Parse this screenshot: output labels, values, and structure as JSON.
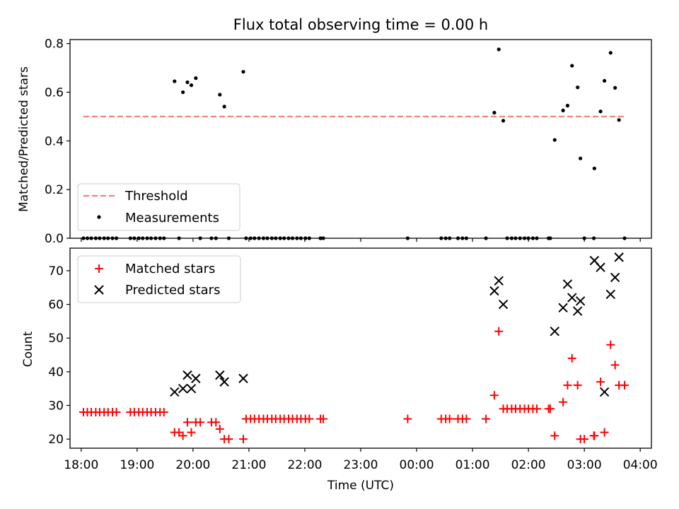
{
  "chart_data": [
    {
      "type": "scatter",
      "title": "Flux total observing time = 0.00 h",
      "xlabel": "",
      "ylabel": "Matched/Predicted stars",
      "xlim": [
        17.8,
        28.2
      ],
      "ylim": [
        0,
        0.8163
      ],
      "yticks": [
        0.0,
        0.2,
        0.4,
        0.6,
        0.8
      ],
      "ytick_labels": [
        "0.0",
        "0.2",
        "0.4",
        "0.6",
        "0.8"
      ],
      "legend_position": "lower-left",
      "threshold": {
        "name": "Threshold",
        "y": 0.5,
        "x": [
          18.04,
          27.72
        ],
        "color": "#f77f7f",
        "style": "dashed"
      },
      "series": [
        {
          "name": "Measurements",
          "color": "#000000",
          "marker": "dot",
          "points": [
            [
              18.04,
              0
            ],
            [
              18.11,
              0
            ],
            [
              18.18,
              0
            ],
            [
              18.26,
              0
            ],
            [
              18.33,
              0
            ],
            [
              18.41,
              0
            ],
            [
              18.48,
              0
            ],
            [
              18.56,
              0
            ],
            [
              18.63,
              0
            ],
            [
              18.88,
              0
            ],
            [
              18.95,
              0
            ],
            [
              19.03,
              0
            ],
            [
              19.1,
              0
            ],
            [
              19.18,
              0
            ],
            [
              19.25,
              0
            ],
            [
              19.33,
              0
            ],
            [
              19.41,
              0
            ],
            [
              19.48,
              0
            ],
            [
              19.67,
              0.645
            ],
            [
              19.75,
              0
            ],
            [
              19.82,
              0.6
            ],
            [
              19.9,
              0.641
            ],
            [
              19.97,
              0.629
            ],
            [
              20.05,
              0.658
            ],
            [
              20.13,
              0
            ],
            [
              20.33,
              0
            ],
            [
              20.41,
              0
            ],
            [
              20.48,
              0.59
            ],
            [
              20.56,
              0.541
            ],
            [
              20.64,
              0
            ],
            [
              20.9,
              0.684
            ],
            [
              20.95,
              0
            ],
            [
              21.03,
              0
            ],
            [
              21.1,
              0
            ],
            [
              21.18,
              0
            ],
            [
              21.26,
              0
            ],
            [
              21.33,
              0
            ],
            [
              21.41,
              0
            ],
            [
              21.48,
              0
            ],
            [
              21.56,
              0
            ],
            [
              21.63,
              0
            ],
            [
              21.71,
              0
            ],
            [
              21.78,
              0
            ],
            [
              21.86,
              0
            ],
            [
              21.93,
              0
            ],
            [
              22.01,
              0
            ],
            [
              22.08,
              0
            ],
            [
              22.28,
              0
            ],
            [
              22.33,
              0
            ],
            [
              23.84,
              0
            ],
            [
              24.44,
              0
            ],
            [
              24.52,
              0
            ],
            [
              24.59,
              0
            ],
            [
              24.74,
              0
            ],
            [
              24.82,
              0
            ],
            [
              24.89,
              0
            ],
            [
              25.24,
              0
            ],
            [
              25.39,
              0.516
            ],
            [
              25.47,
              0.776
            ],
            [
              25.55,
              0.483
            ],
            [
              25.62,
              0
            ],
            [
              25.7,
              0
            ],
            [
              25.77,
              0
            ],
            [
              25.85,
              0
            ],
            [
              25.93,
              0
            ],
            [
              26.0,
              0
            ],
            [
              26.08,
              0
            ],
            [
              26.15,
              0
            ],
            [
              26.36,
              0
            ],
            [
              26.39,
              0
            ],
            [
              26.47,
              0.404
            ],
            [
              26.62,
              0.525
            ],
            [
              26.7,
              0.545
            ],
            [
              26.78,
              0.709
            ],
            [
              26.88,
              0.62
            ],
            [
              26.93,
              0.328
            ],
            [
              27.0,
              0
            ],
            [
              27.17,
              0
            ],
            [
              27.18,
              0.287
            ],
            [
              27.29,
              0.521
            ],
            [
              27.36,
              0.647
            ],
            [
              27.47,
              0.762
            ],
            [
              27.55,
              0.618
            ],
            [
              27.62,
              0.486
            ],
            [
              27.72,
              0
            ]
          ]
        }
      ]
    },
    {
      "type": "scatter",
      "title": "",
      "xlabel": "Time (UTC)",
      "ylabel": "Count",
      "xlim": [
        17.8,
        28.2
      ],
      "ylim": [
        17.3,
        76.7
      ],
      "yticks": [
        20,
        30,
        40,
        50,
        60,
        70
      ],
      "xticks": [
        18,
        19,
        20,
        21,
        22,
        23,
        24,
        25,
        26,
        27,
        28
      ],
      "xtick_labels": [
        "18:00",
        "19:00",
        "20:00",
        "21:00",
        "22:00",
        "23:00",
        "00:00",
        "01:00",
        "02:00",
        "03:00",
        "04:00"
      ],
      "legend_position": "upper-left",
      "series": [
        {
          "name": "Matched stars",
          "color": "#ff0000",
          "marker": "plus",
          "points": [
            [
              18.04,
              28
            ],
            [
              18.11,
              28
            ],
            [
              18.18,
              28
            ],
            [
              18.26,
              28
            ],
            [
              18.33,
              28
            ],
            [
              18.41,
              28
            ],
            [
              18.48,
              28
            ],
            [
              18.56,
              28
            ],
            [
              18.63,
              28
            ],
            [
              18.88,
              28
            ],
            [
              18.95,
              28
            ],
            [
              19.03,
              28
            ],
            [
              19.1,
              28
            ],
            [
              19.18,
              28
            ],
            [
              19.25,
              28
            ],
            [
              19.33,
              28
            ],
            [
              19.41,
              28
            ],
            [
              19.48,
              28
            ],
            [
              19.67,
              22
            ],
            [
              19.75,
              22
            ],
            [
              19.82,
              21
            ],
            [
              19.9,
              25
            ],
            [
              19.97,
              22
            ],
            [
              20.05,
              25
            ],
            [
              20.13,
              25
            ],
            [
              20.33,
              25
            ],
            [
              20.41,
              25
            ],
            [
              20.48,
              23
            ],
            [
              20.56,
              20
            ],
            [
              20.64,
              20
            ],
            [
              20.9,
              20
            ],
            [
              20.95,
              26
            ],
            [
              21.03,
              26
            ],
            [
              21.1,
              26
            ],
            [
              21.18,
              26
            ],
            [
              21.26,
              26
            ],
            [
              21.33,
              26
            ],
            [
              21.41,
              26
            ],
            [
              21.48,
              26
            ],
            [
              21.56,
              26
            ],
            [
              21.63,
              26
            ],
            [
              21.71,
              26
            ],
            [
              21.78,
              26
            ],
            [
              21.86,
              26
            ],
            [
              21.93,
              26
            ],
            [
              22.01,
              26
            ],
            [
              22.08,
              26
            ],
            [
              22.28,
              26
            ],
            [
              22.33,
              26
            ],
            [
              23.84,
              26
            ],
            [
              24.44,
              26
            ],
            [
              24.52,
              26
            ],
            [
              24.59,
              26
            ],
            [
              24.74,
              26
            ],
            [
              24.82,
              26
            ],
            [
              24.89,
              26
            ],
            [
              25.24,
              26
            ],
            [
              25.39,
              33
            ],
            [
              25.47,
              52
            ],
            [
              25.55,
              29
            ],
            [
              25.62,
              29
            ],
            [
              25.7,
              29
            ],
            [
              25.77,
              29
            ],
            [
              25.85,
              29
            ],
            [
              25.93,
              29
            ],
            [
              26.0,
              29
            ],
            [
              26.08,
              29
            ],
            [
              26.15,
              29
            ],
            [
              26.36,
              29
            ],
            [
              26.39,
              29
            ],
            [
              26.47,
              21
            ],
            [
              26.62,
              31
            ],
            [
              26.7,
              36
            ],
            [
              26.78,
              44
            ],
            [
              26.88,
              36
            ],
            [
              26.93,
              20
            ],
            [
              27.0,
              20
            ],
            [
              27.17,
              21
            ],
            [
              27.18,
              21
            ],
            [
              27.29,
              37
            ],
            [
              27.36,
              22
            ],
            [
              27.47,
              48
            ],
            [
              27.55,
              42
            ],
            [
              27.62,
              36
            ],
            [
              27.72,
              36
            ]
          ]
        },
        {
          "name": "Predicted stars",
          "color": "#000000",
          "marker": "x",
          "points": [
            [
              19.67,
              34
            ],
            [
              19.82,
              35
            ],
            [
              19.9,
              39
            ],
            [
              19.97,
              35
            ],
            [
              20.05,
              38
            ],
            [
              20.48,
              39
            ],
            [
              20.56,
              37
            ],
            [
              20.9,
              38
            ],
            [
              25.39,
              64
            ],
            [
              25.47,
              67
            ],
            [
              25.55,
              60
            ],
            [
              26.47,
              52
            ],
            [
              26.62,
              59
            ],
            [
              26.7,
              66
            ],
            [
              26.78,
              62
            ],
            [
              26.88,
              58
            ],
            [
              26.93,
              61
            ],
            [
              27.18,
              73
            ],
            [
              27.29,
              71
            ],
            [
              27.36,
              34
            ],
            [
              27.47,
              63
            ],
            [
              27.55,
              68
            ],
            [
              27.62,
              74
            ]
          ]
        }
      ]
    }
  ]
}
